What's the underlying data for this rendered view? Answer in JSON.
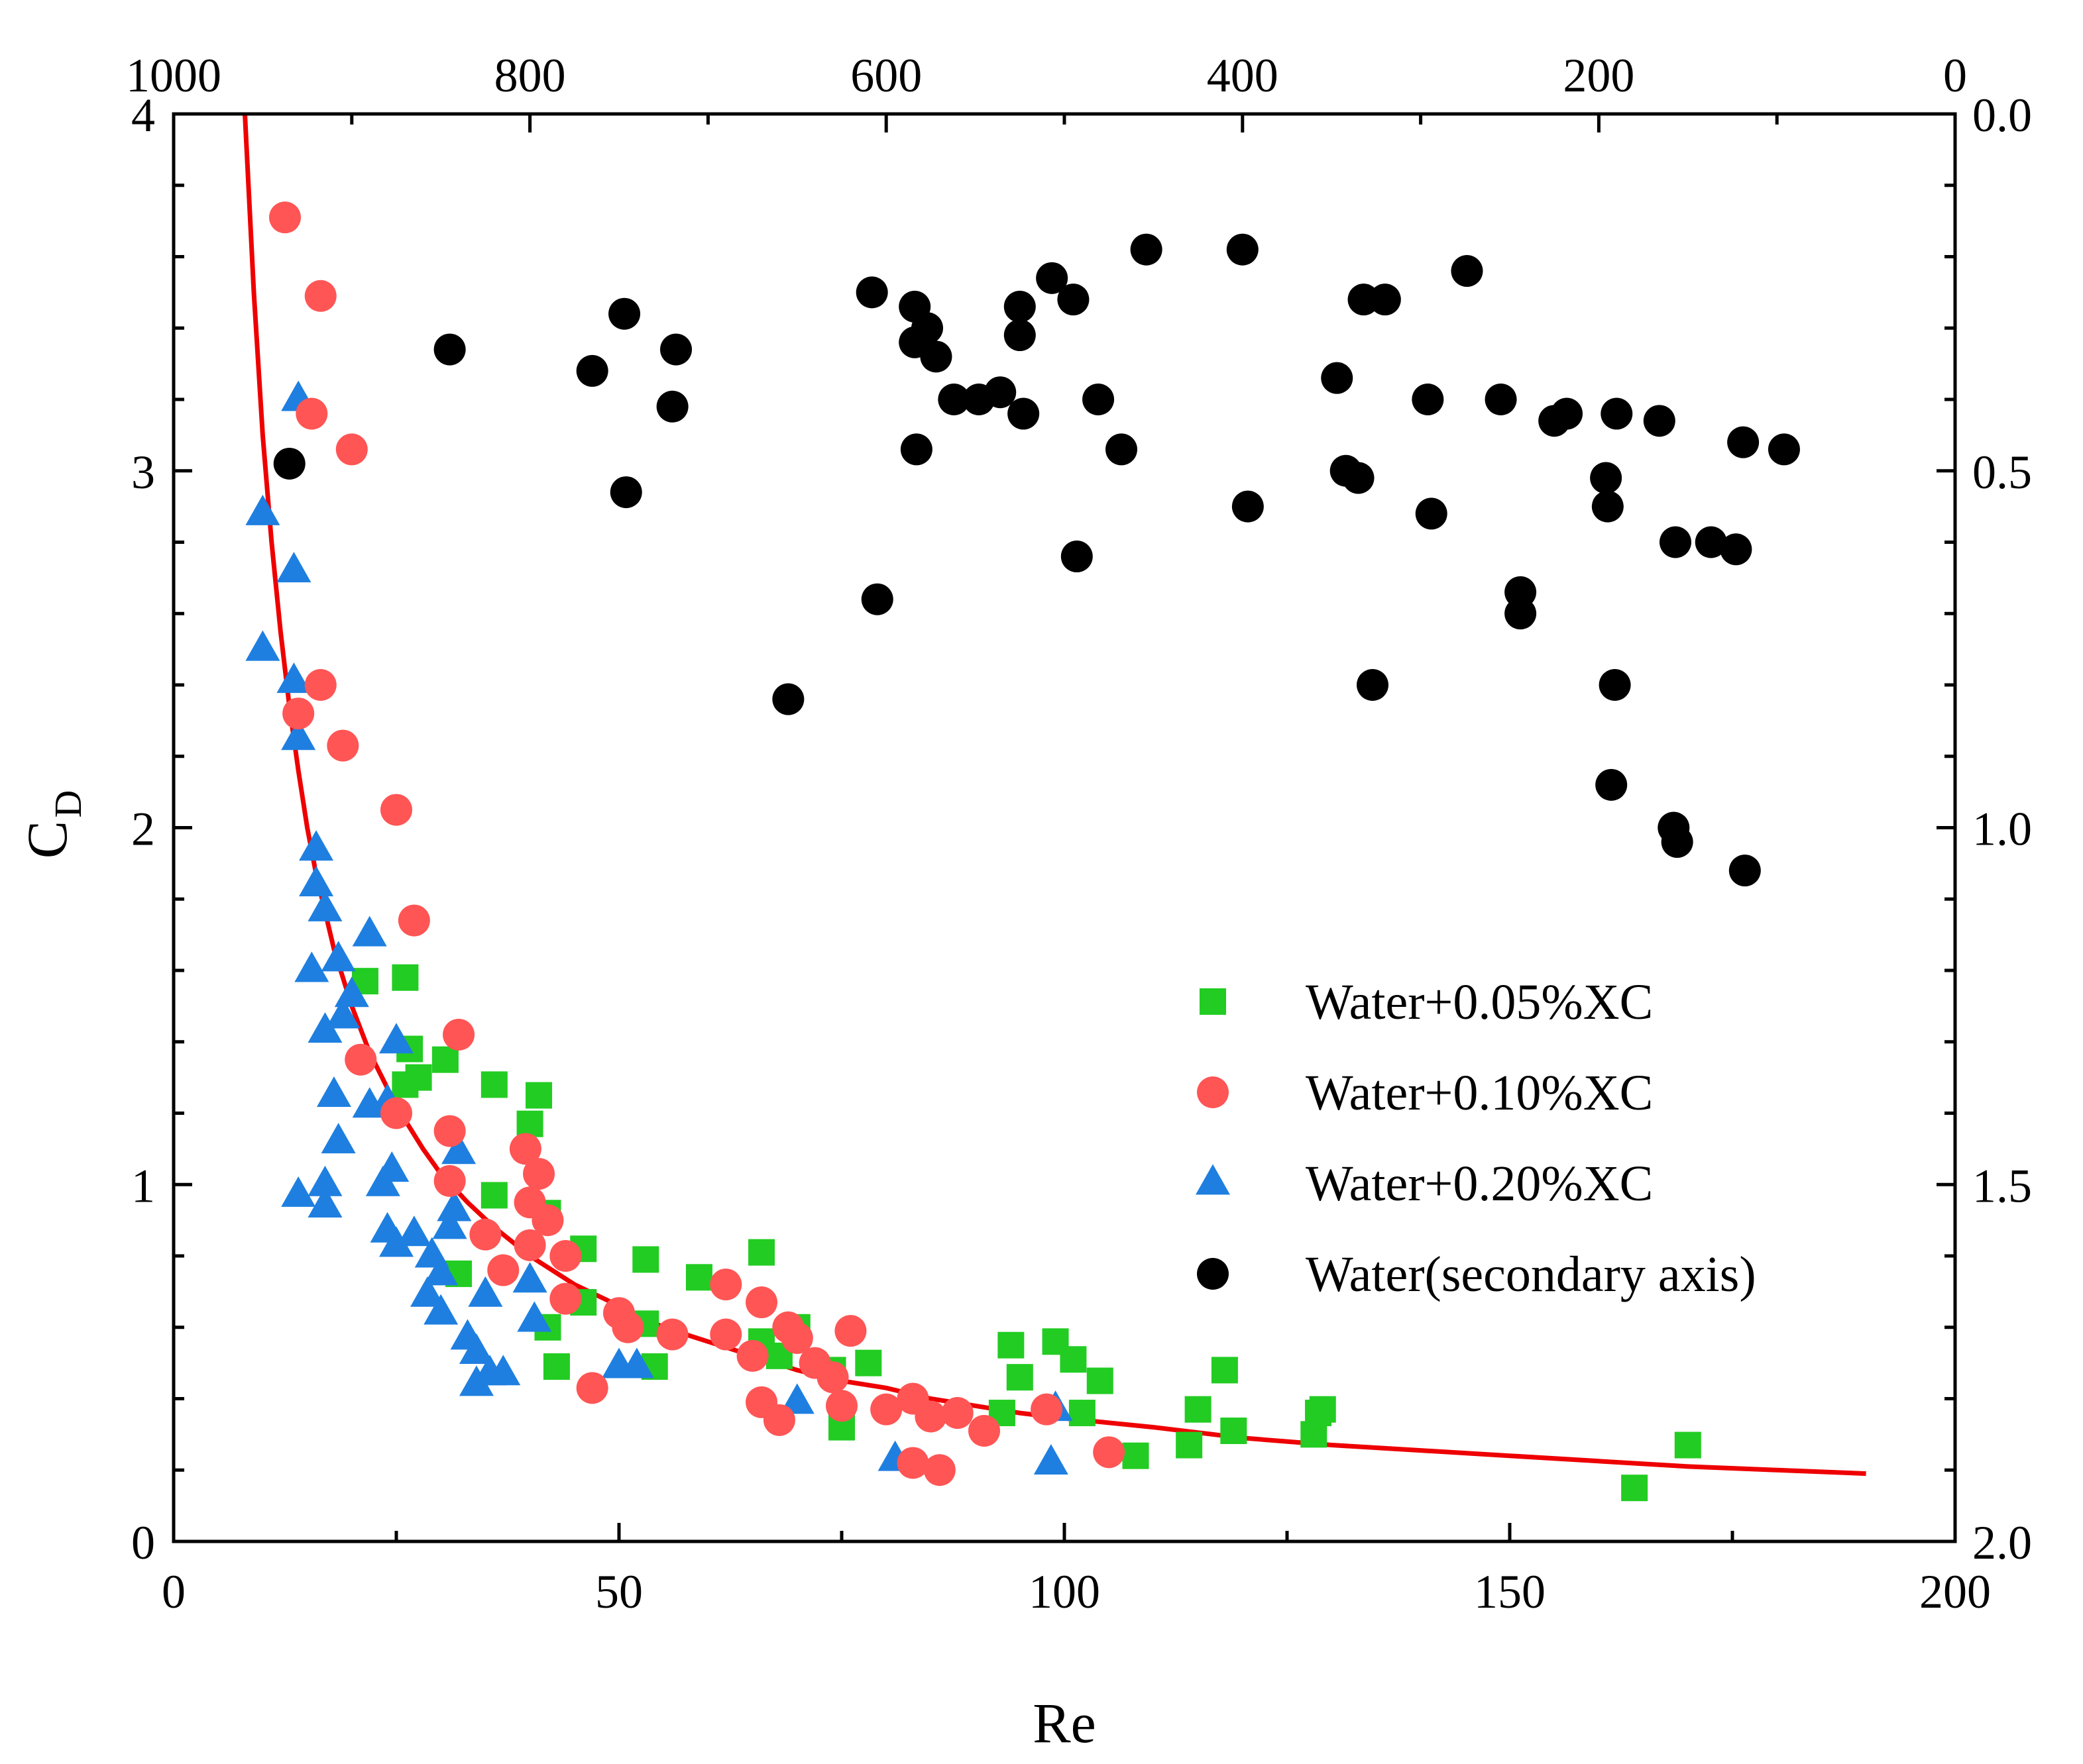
{
  "chart_data": {
    "type": "scatter",
    "title": "",
    "xlabel": "Re",
    "ylabel_main": "C",
    "ylabel_sub": "D",
    "xlim": [
      0,
      200
    ],
    "ylim": [
      0,
      4
    ],
    "x2lim": [
      1000,
      0
    ],
    "y2lim": [
      0,
      2
    ],
    "y2_inverted": true,
    "x_ticks": [
      "0",
      "50",
      "100",
      "150",
      "200"
    ],
    "y_ticks": [
      "0",
      "1",
      "2",
      "3",
      "4"
    ],
    "x2_ticks": [
      "1000",
      "800",
      "600",
      "400",
      "200",
      "0"
    ],
    "y2_ticks": [
      "0.0",
      "0.5",
      "1.0",
      "1.5",
      "2.0"
    ],
    "legend_position": "middle-right",
    "colors": {
      "green": "#22cc22",
      "red": "#ff5555",
      "blue": "#1e7fe0",
      "black": "#000000",
      "fit": "#ee0000"
    },
    "fit_curve": {
      "name": "fit",
      "color": "#ee0000",
      "x": [
        8,
        9,
        10,
        11,
        12,
        13,
        14,
        15,
        16,
        18,
        20,
        22,
        25,
        28,
        30,
        33,
        36,
        40,
        45,
        50,
        55,
        60,
        65,
        70,
        75,
        80,
        85,
        90,
        95,
        100,
        110,
        120,
        130,
        140,
        150,
        160,
        170,
        180,
        190
      ],
      "y": [
        4.0,
        3.5,
        3.1,
        2.8,
        2.55,
        2.34,
        2.16,
        2.0,
        1.87,
        1.66,
        1.5,
        1.37,
        1.22,
        1.1,
        1.03,
        0.95,
        0.88,
        0.8,
        0.72,
        0.66,
        0.6,
        0.56,
        0.52,
        0.48,
        0.45,
        0.43,
        0.4,
        0.38,
        0.36,
        0.345,
        0.32,
        0.29,
        0.27,
        0.255,
        0.24,
        0.225,
        0.21,
        0.2,
        0.19
      ]
    },
    "series": [
      {
        "name": "Water+0.05%XC",
        "marker": "square",
        "color": "#22cc22",
        "points": [
          [
            21.5,
            1.57
          ],
          [
            26,
            1.58
          ],
          [
            26.5,
            1.38
          ],
          [
            27.5,
            1.3
          ],
          [
            30.5,
            1.35
          ],
          [
            26,
            1.28
          ],
          [
            36,
            1.28
          ],
          [
            40,
            1.17
          ],
          [
            41,
            1.25
          ],
          [
            36,
            0.97
          ],
          [
            42,
            0.92
          ],
          [
            46,
            0.82
          ],
          [
            53,
            0.79
          ],
          [
            59,
            0.74
          ],
          [
            66,
            0.81
          ],
          [
            32,
            0.75
          ],
          [
            42,
            0.6
          ],
          [
            43,
            0.49
          ],
          [
            46,
            0.67
          ],
          [
            53,
            0.61
          ],
          [
            54,
            0.49
          ],
          [
            66,
            0.56
          ],
          [
            68,
            0.52
          ],
          [
            70,
            0.6
          ],
          [
            74,
            0.48
          ],
          [
            75,
            0.32
          ],
          [
            78,
            0.5
          ],
          [
            93,
            0.36
          ],
          [
            94,
            0.55
          ],
          [
            95,
            0.46
          ],
          [
            99,
            0.56
          ],
          [
            101,
            0.51
          ],
          [
            102,
            0.36
          ],
          [
            104,
            0.45
          ],
          [
            108,
            0.24
          ],
          [
            114,
            0.27
          ],
          [
            115,
            0.37
          ],
          [
            118,
            0.48
          ],
          [
            119,
            0.31
          ],
          [
            128,
            0.3
          ],
          [
            128.5,
            0.36
          ],
          [
            129,
            0.37
          ],
          [
            164,
            0.15
          ],
          [
            170,
            0.27
          ]
        ]
      },
      {
        "name": "Water+0.10%XC",
        "marker": "circle",
        "color": "#ff5555",
        "points": [
          [
            12.5,
            3.71
          ],
          [
            16.5,
            3.49
          ],
          [
            15.5,
            3.16
          ],
          [
            20,
            3.06
          ],
          [
            16.5,
            2.4
          ],
          [
            14,
            2.32
          ],
          [
            19,
            2.23
          ],
          [
            25,
            2.05
          ],
          [
            27,
            1.74
          ],
          [
            21,
            1.35
          ],
          [
            25,
            1.2
          ],
          [
            32,
            1.42
          ],
          [
            31,
            1.15
          ],
          [
            31,
            1.01
          ],
          [
            35,
            0.86
          ],
          [
            37,
            0.76
          ],
          [
            39.5,
            1.1
          ],
          [
            41,
            1.03
          ],
          [
            40,
            0.95
          ],
          [
            42,
            0.9
          ],
          [
            40,
            0.83
          ],
          [
            44,
            0.8
          ],
          [
            44,
            0.68
          ],
          [
            47,
            0.43
          ],
          [
            50,
            0.64
          ],
          [
            51,
            0.6
          ],
          [
            56,
            0.58
          ],
          [
            62,
            0.72
          ],
          [
            62,
            0.58
          ],
          [
            65,
            0.52
          ],
          [
            66,
            0.67
          ],
          [
            66,
            0.39
          ],
          [
            68,
            0.34
          ],
          [
            69,
            0.6
          ],
          [
            70,
            0.57
          ],
          [
            72,
            0.5
          ],
          [
            74,
            0.46
          ],
          [
            75,
            0.38
          ],
          [
            76,
            0.59
          ],
          [
            80,
            0.37
          ],
          [
            83,
            0.4
          ],
          [
            83,
            0.22
          ],
          [
            85,
            0.35
          ],
          [
            86,
            0.2
          ],
          [
            88,
            0.36
          ],
          [
            91,
            0.31
          ],
          [
            98,
            0.37
          ],
          [
            105,
            0.25
          ]
        ]
      },
      {
        "name": "Water+0.20%XC",
        "marker": "triangle",
        "color": "#1e7fe0",
        "points": [
          [
            14,
            3.2
          ],
          [
            10,
            2.88
          ],
          [
            13.5,
            2.72
          ],
          [
            10,
            2.5
          ],
          [
            13.5,
            2.41
          ],
          [
            14,
            2.25
          ],
          [
            16,
            1.94
          ],
          [
            16,
            1.84
          ],
          [
            17,
            1.77
          ],
          [
            18.5,
            1.63
          ],
          [
            15.5,
            1.6
          ],
          [
            22,
            1.7
          ],
          [
            20,
            1.53
          ],
          [
            19,
            1.47
          ],
          [
            17,
            1.43
          ],
          [
            18,
            1.25
          ],
          [
            22,
            1.22
          ],
          [
            24,
            1.23
          ],
          [
            25,
            1.4
          ],
          [
            18.5,
            1.12
          ],
          [
            14,
            0.97
          ],
          [
            17,
            1.0
          ],
          [
            17,
            0.94
          ],
          [
            23.5,
            1.0
          ],
          [
            24.5,
            1.04
          ],
          [
            24,
            0.87
          ],
          [
            25,
            0.83
          ],
          [
            27,
            0.86
          ],
          [
            29,
            0.8
          ],
          [
            28.5,
            0.69
          ],
          [
            30,
            0.75
          ],
          [
            30,
            0.64
          ],
          [
            31,
            0.88
          ],
          [
            31.5,
            0.93
          ],
          [
            32,
            1.09
          ],
          [
            33,
            0.57
          ],
          [
            34,
            0.53
          ],
          [
            34,
            0.44
          ],
          [
            35,
            0.69
          ],
          [
            35.5,
            0.47
          ],
          [
            37,
            0.47
          ],
          [
            40,
            0.73
          ],
          [
            40.5,
            0.62
          ],
          [
            50,
            0.49
          ],
          [
            52,
            0.49
          ],
          [
            70,
            0.39
          ],
          [
            81,
            0.23
          ],
          [
            98.5,
            0.22
          ],
          [
            99,
            0.37
          ]
        ]
      },
      {
        "name": "Water(secondary axis)",
        "axes": "secondary",
        "marker": "circle",
        "color": "#000000",
        "points": [
          [
            935,
            0.49
          ],
          [
            845,
            0.33
          ],
          [
            765,
            0.36
          ],
          [
            747,
            0.28
          ],
          [
            746,
            0.53
          ],
          [
            720,
            0.41
          ],
          [
            718,
            0.33
          ],
          [
            655,
            0.82
          ],
          [
            608,
            0.25
          ],
          [
            605,
            0.68
          ],
          [
            584,
            0.27
          ],
          [
            584,
            0.32
          ],
          [
            583,
            0.47
          ],
          [
            577,
            0.3
          ],
          [
            572,
            0.34
          ],
          [
            562,
            0.4
          ],
          [
            548,
            0.4
          ],
          [
            536,
            0.39
          ],
          [
            525,
            0.27
          ],
          [
            525,
            0.31
          ],
          [
            523,
            0.42
          ],
          [
            507,
            0.23
          ],
          [
            495,
            0.26
          ],
          [
            493,
            0.62
          ],
          [
            481,
            0.4
          ],
          [
            468,
            0.47
          ],
          [
            454,
            0.19
          ],
          [
            400,
            0.19
          ],
          [
            397,
            0.55
          ],
          [
            347,
            0.37
          ],
          [
            342,
            0.5
          ],
          [
            335,
            0.51
          ],
          [
            332,
            0.26
          ],
          [
            327,
            0.8
          ],
          [
            320,
            0.26
          ],
          [
            296,
            0.4
          ],
          [
            294,
            0.56
          ],
          [
            274,
            0.22
          ],
          [
            255,
            0.4
          ],
          [
            244,
            0.7
          ],
          [
            244,
            0.67
          ],
          [
            225,
            0.43
          ],
          [
            218,
            0.42
          ],
          [
            196,
            0.51
          ],
          [
            195,
            0.55
          ],
          [
            193,
            0.94
          ],
          [
            191,
            0.8
          ],
          [
            190,
            0.42
          ],
          [
            166,
            0.43
          ],
          [
            158,
            1.0
          ],
          [
            157,
            0.6
          ],
          [
            156,
            1.02
          ],
          [
            137,
            0.6
          ],
          [
            123,
            0.61
          ],
          [
            119,
            0.46
          ],
          [
            118,
            1.06
          ],
          [
            96,
            0.47
          ]
        ]
      }
    ]
  }
}
